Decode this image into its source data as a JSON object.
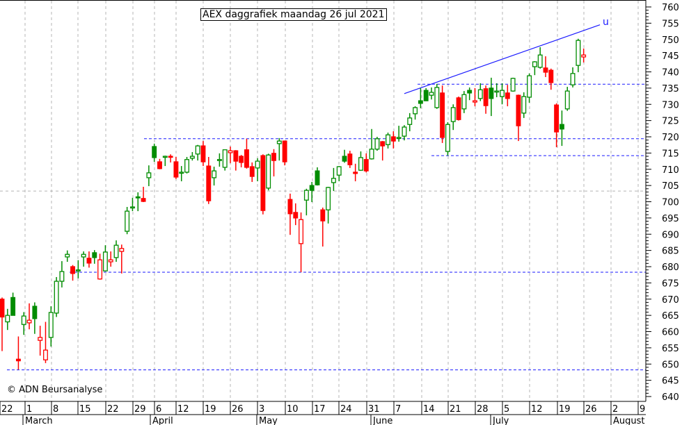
{
  "chart_data": {
    "type": "candlestick",
    "title": "AEX daggrafiek maandag 26 jul 2021",
    "copyright": "© ADN Beursanalyse",
    "ylim": [
      640,
      760
    ],
    "y_ticks": [
      760,
      755,
      750,
      745,
      740,
      735,
      730,
      725,
      720,
      715,
      710,
      705,
      700,
      695,
      690,
      685,
      680,
      675,
      670,
      665,
      660,
      655,
      650,
      645,
      640
    ],
    "x_day_labels": [
      "22",
      "1",
      "8",
      "15",
      "22",
      "29",
      "6",
      "12",
      "19",
      "26",
      "3",
      "10",
      "17",
      "24",
      "31",
      "7",
      "14",
      "21",
      "28",
      "5",
      "12",
      "19",
      "26",
      "2",
      "9"
    ],
    "x_month_labels": [
      "March",
      "April",
      "May",
      "June",
      "July",
      "August"
    ],
    "colors": {
      "up": "#008c00",
      "down": "#ff0000",
      "line": "#1a1aff",
      "grid": "#b4b4b4"
    },
    "horizontal_levels": [
      736.2,
      719.4,
      714.2,
      678.3,
      648.2
    ],
    "trendline": {
      "label": "u",
      "from_candle": 74,
      "from_value": 733.3,
      "to_candle": 110,
      "to_value": 754.5
    },
    "candles": [
      [
        670,
        670.5,
        654,
        664.5
      ],
      [
        663,
        667,
        660.5,
        665
      ],
      [
        670.5,
        672,
        665,
        665
      ],
      [
        651.5,
        658.5,
        648.3,
        651
      ],
      [
        662.2,
        666,
        659,
        664.8
      ],
      [
        662.7,
        668.7,
        660.7,
        663.5
      ],
      [
        667.8,
        669,
        659.3,
        664
      ],
      [
        657.3,
        661.8,
        652.6,
        658.2
      ],
      [
        651.3,
        663,
        650.3,
        654.3
      ],
      [
        658.2,
        667.8,
        655.4,
        665.9
      ],
      [
        665.7,
        676.8,
        664.5,
        675.5
      ],
      [
        675.5,
        681.7,
        673.6,
        678.5
      ],
      [
        683,
        685,
        681.5,
        683.8
      ],
      [
        680,
        680.5,
        675.7,
        677.9
      ],
      [
        678.8,
        682,
        676.4,
        679
      ],
      [
        683,
        684.7,
        680,
        683.8
      ],
      [
        682.6,
        684.7,
        679.7,
        681.1
      ],
      [
        684.3,
        685.1,
        680.9,
        682.8
      ],
      [
        676.2,
        684,
        676,
        682.1
      ],
      [
        678.7,
        686.6,
        678.5,
        684.5
      ],
      [
        681.5,
        684.7,
        680,
        682.1
      ],
      [
        682.8,
        688.1,
        681.5,
        686.6
      ],
      [
        684.7,
        686.8,
        677.9,
        685.6
      ],
      [
        690.9,
        698.4,
        690,
        697.1
      ],
      [
        698.2,
        701.2,
        697.1,
        698.4
      ],
      [
        701.5,
        702.9,
        697.1,
        701.2
      ],
      [
        701,
        704.6,
        699.9,
        700.1
      ],
      [
        707.4,
        711.2,
        704.8,
        708.9
      ],
      [
        717,
        717.9,
        712.3,
        713.6
      ],
      [
        712.3,
        713.2,
        710,
        710.2
      ],
      [
        713.8,
        714.2,
        711,
        714
      ],
      [
        714,
        714.6,
        712.1,
        713.8
      ],
      [
        712.3,
        713.8,
        707,
        707.6
      ],
      [
        709,
        711,
        706.3,
        709.1
      ],
      [
        709.1,
        713.8,
        708.7,
        713
      ],
      [
        713.4,
        715.3,
        712.7,
        714
      ],
      [
        714.7,
        717.5,
        712.7,
        717.2
      ],
      [
        717.2,
        718.7,
        711,
        712.3
      ],
      [
        711,
        713.8,
        699.3,
        700.3
      ],
      [
        707.4,
        710.8,
        705,
        709.5
      ],
      [
        712.8,
        714.9,
        710.8,
        713
      ],
      [
        710.6,
        716,
        709.6,
        716
      ],
      [
        715.1,
        717,
        711.9,
        715.7
      ],
      [
        715.7,
        715.9,
        709.6,
        712.5
      ],
      [
        714,
        714.4,
        710.6,
        712.1
      ],
      [
        716,
        719.4,
        710.2,
        710.6
      ],
      [
        710.8,
        712.1,
        706.1,
        707.8
      ],
      [
        710.4,
        713.4,
        706.3,
        712.5
      ],
      [
        714.2,
        714.6,
        696.1,
        697.3
      ],
      [
        704.2,
        714.8,
        703.5,
        714.4
      ],
      [
        714.9,
        716.2,
        707.8,
        712.7
      ],
      [
        717.9,
        719.6,
        712.7,
        718.7
      ],
      [
        718.7,
        718.7,
        711.2,
        712.3
      ],
      [
        700.7,
        702.5,
        689.8,
        696.3
      ],
      [
        696.7,
        699.5,
        692.8,
        695
      ],
      [
        687.1,
        696.7,
        678.3,
        694.5
      ],
      [
        700.5,
        704,
        695.8,
        703.5
      ],
      [
        705,
        706.1,
        699.9,
        703.5
      ],
      [
        709.5,
        710.6,
        705,
        705.2
      ],
      [
        697.5,
        698.2,
        686.2,
        694.1
      ],
      [
        697.5,
        704.6,
        693.3,
        704.4
      ],
      [
        705.9,
        710.4,
        703.3,
        707.2
      ],
      [
        708.2,
        711,
        706.3,
        710.8
      ],
      [
        714,
        716,
        712,
        712.5
      ],
      [
        714.7,
        715.7,
        710.4,
        711.4
      ],
      [
        709.1,
        711.7,
        706.3,
        708.7
      ],
      [
        709.7,
        715.5,
        709.5,
        713.6
      ],
      [
        713,
        714.9,
        709,
        709.5
      ],
      [
        713.2,
        722.4,
        713,
        716.2
      ],
      [
        716.2,
        720,
        715.7,
        719.4
      ],
      [
        718.5,
        718.7,
        712.7,
        717.2
      ],
      [
        717.6,
        721.3,
        716.4,
        720.6
      ],
      [
        720,
        721.7,
        716.4,
        718.7
      ],
      [
        719.6,
        723.4,
        718.5,
        719.8
      ],
      [
        720.2,
        723.6,
        718.9,
        723
      ],
      [
        723.8,
        727.3,
        721.7,
        725.8
      ],
      [
        727.1,
        729.4,
        725.3,
        729
      ],
      [
        731.1,
        735,
        728.8,
        730.3
      ],
      [
        734.3,
        735,
        731,
        731.1
      ],
      [
        732.8,
        735.2,
        731.5,
        733.7
      ],
      [
        729,
        736.3,
        728.6,
        735.2
      ],
      [
        733.5,
        735.8,
        718.1,
        719.8
      ],
      [
        715.5,
        724.5,
        714.2,
        723.8
      ],
      [
        724.7,
        730,
        722.1,
        729
      ],
      [
        732,
        732.4,
        725,
        725.3
      ],
      [
        728.6,
        734.1,
        727.3,
        733
      ],
      [
        734.3,
        735.2,
        731.3,
        733.5
      ],
      [
        730.7,
        735,
        729.4,
        731.1
      ],
      [
        731.8,
        736.5,
        731,
        734.5
      ],
      [
        734.8,
        735.8,
        727.1,
        729.6
      ],
      [
        735,
        738.2,
        726.4,
        731.8
      ],
      [
        734,
        736.5,
        732.2,
        734.1
      ],
      [
        732.4,
        736.5,
        730,
        734.3
      ],
      [
        733.5,
        736,
        729.4,
        731.8
      ],
      [
        734.1,
        738.2,
        733.9,
        738
      ],
      [
        732.8,
        733,
        718.7,
        723.4
      ],
      [
        727.3,
        733.7,
        725.8,
        732.4
      ],
      [
        732.2,
        739.5,
        730.5,
        738.8
      ],
      [
        741.6,
        743.3,
        739,
        743.1
      ],
      [
        741.4,
        747.6,
        741,
        745.2
      ],
      [
        741.2,
        744.8,
        738.4,
        739.9
      ],
      [
        740.5,
        741,
        734.5,
        736.7
      ],
      [
        729.8,
        730.3,
        716.8,
        721.5
      ],
      [
        723.8,
        728.1,
        717.2,
        722.4
      ],
      [
        728.6,
        735.4,
        728,
        734.1
      ],
      [
        736,
        741.4,
        735.2,
        739.5
      ],
      [
        742,
        750.2,
        739.9,
        749.7
      ],
      [
        744.6,
        747.2,
        742.9,
        745.2
      ]
    ]
  }
}
